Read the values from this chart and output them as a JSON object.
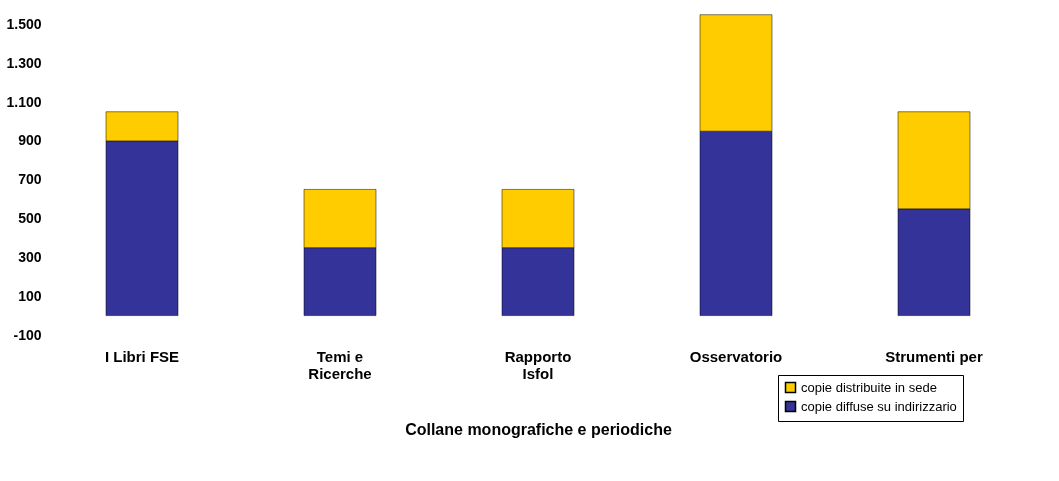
{
  "chart_data": {
    "type": "bar",
    "stacked": true,
    "categories": [
      "I Libri FSE",
      "Temi e\nRicerche",
      "Rapporto\nIsfol",
      "Osservatorio",
      "Strumenti per"
    ],
    "series": [
      {
        "name": "copie diffuse su indirizzario",
        "color": "#333399",
        "values": [
          900,
          350,
          350,
          950,
          550
        ]
      },
      {
        "name": "copie distribuite in sede",
        "color": "#ffcc00",
        "values": [
          150,
          300,
          300,
          600,
          500
        ]
      }
    ],
    "xlabel": "Collane monografiche e periodiche",
    "ylim": [
      -100,
      1600
    ],
    "yticks": [
      -100,
      100,
      300,
      500,
      700,
      900,
      {
        "value": 1100,
        "label": "1.100"
      },
      {
        "value": 1300,
        "label": "1.300"
      },
      {
        "value": 1500,
        "label": "1.500"
      }
    ],
    "grid": false,
    "legend": "bottom right"
  }
}
